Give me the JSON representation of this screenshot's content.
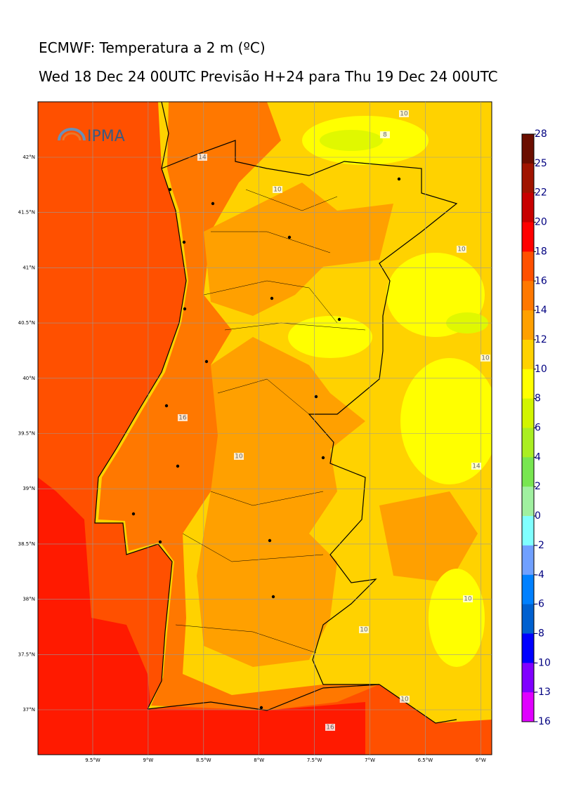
{
  "header": {
    "title": "ECMWF: Temperatura a 2 m (ºC)",
    "subtitle": "Wed 18 Dec 24 00UTC Previsão H+24 para Thu 19 Dec 24 00UTC"
  },
  "logo": "IPMA",
  "map": {
    "lat_labels": [
      "42°N",
      "41.5°N",
      "41°N",
      "40.5°N",
      "40°N",
      "39.5°N",
      "39°N",
      "38.5°N",
      "38°N",
      "37.5°N",
      "37°N"
    ],
    "lon_labels": [
      "9.5°W",
      "9°W",
      "8.5°W",
      "8°W",
      "7.5°W",
      "7°W",
      "6.5°W",
      "6°W"
    ],
    "contour_labels": [
      "10",
      "8",
      "14",
      "10",
      "10",
      "10",
      "14",
      "16",
      "10",
      "10",
      "10",
      "10",
      "16"
    ]
  },
  "colorbar": {
    "labels": [
      "28",
      "25",
      "22",
      "20",
      "18",
      "16",
      "14",
      "12",
      "10",
      "8",
      "6",
      "4",
      "2",
      "0",
      "-2",
      "-4",
      "-6",
      "-8",
      "-10",
      "-13",
      "-16"
    ],
    "colors": [
      "#6b0e00",
      "#a01400",
      "#c80000",
      "#ff0000",
      "#ff5000",
      "#ff7800",
      "#ffa000",
      "#ffd200",
      "#ffff00",
      "#d2f500",
      "#aaee22",
      "#78e650",
      "#a0f0a0",
      "#80ffff",
      "#70a0ff",
      "#0080ff",
      "#0060d0",
      "#0000ff",
      "#8000ff",
      "#e000ff"
    ]
  }
}
